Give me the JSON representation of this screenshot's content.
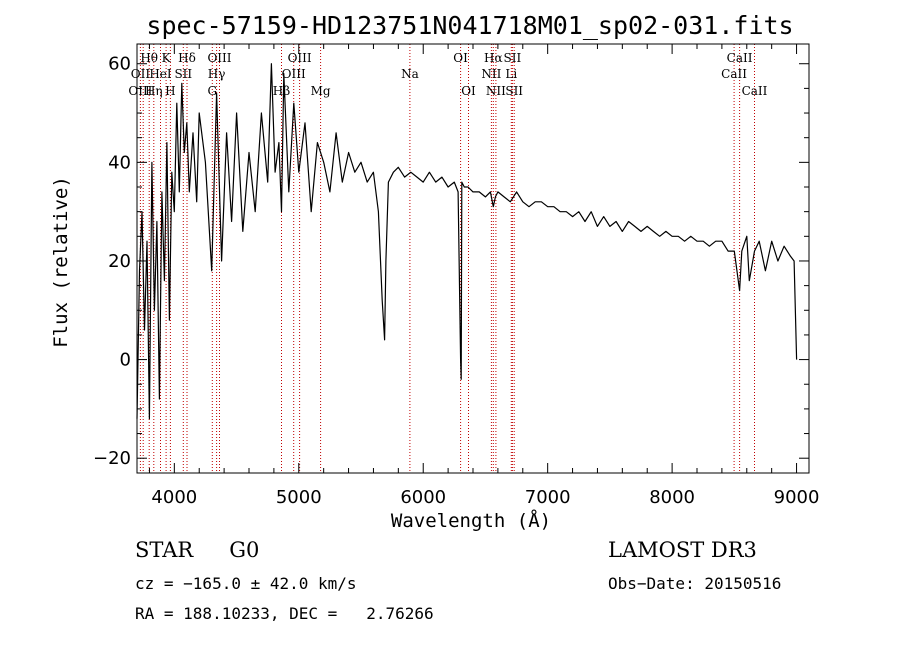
{
  "chart_data": {
    "type": "line",
    "title": "spec-57159-HD123751N041718M01_sp02-031.fits",
    "xlabel": "Wavelength (Å)",
    "ylabel": "Flux (relative)",
    "xlim": [
      3700,
      9100
    ],
    "ylim": [
      -23,
      64
    ],
    "xticks": [
      4000,
      5000,
      6000,
      7000,
      8000,
      9000
    ],
    "yticks": [
      -20,
      0,
      20,
      40,
      60
    ],
    "grid": false,
    "series": [
      {
        "name": "flux",
        "x": [
          3700,
          3720,
          3740,
          3760,
          3780,
          3800,
          3820,
          3840,
          3860,
          3880,
          3900,
          3920,
          3940,
          3960,
          3980,
          4000,
          4020,
          4040,
          4060,
          4080,
          4100,
          4120,
          4150,
          4180,
          4200,
          4250,
          4300,
          4340,
          4380,
          4420,
          4460,
          4500,
          4550,
          4600,
          4650,
          4700,
          4750,
          4780,
          4810,
          4840,
          4861,
          4880,
          4920,
          4960,
          5000,
          5050,
          5100,
          5150,
          5200,
          5250,
          5300,
          5350,
          5400,
          5450,
          5500,
          5550,
          5600,
          5640,
          5670,
          5690,
          5700,
          5720,
          5760,
          5800,
          5850,
          5900,
          5950,
          6000,
          6050,
          6100,
          6150,
          6200,
          6250,
          6280,
          6300,
          6305,
          6310,
          6330,
          6360,
          6400,
          6450,
          6500,
          6540,
          6563,
          6580,
          6600,
          6650,
          6700,
          6750,
          6800,
          6850,
          6900,
          6950,
          7000,
          7050,
          7100,
          7150,
          7200,
          7250,
          7300,
          7350,
          7400,
          7450,
          7500,
          7550,
          7600,
          7650,
          7700,
          7750,
          7800,
          7850,
          7900,
          7950,
          8000,
          8050,
          8100,
          8150,
          8200,
          8250,
          8300,
          8350,
          8400,
          8450,
          8500,
          8542,
          8560,
          8600,
          8620,
          8662,
          8700,
          8750,
          8800,
          8850,
          8900,
          8950,
          8980,
          9000
        ],
        "y": [
          -12,
          18,
          30,
          6,
          24,
          -12,
          40,
          10,
          28,
          -8,
          34,
          16,
          44,
          8,
          38,
          30,
          52,
          34,
          56,
          42,
          48,
          34,
          46,
          32,
          50,
          40,
          18,
          54,
          20,
          46,
          28,
          50,
          26,
          42,
          30,
          50,
          36,
          60,
          38,
          44,
          30,
          58,
          34,
          52,
          38,
          48,
          30,
          44,
          40,
          34,
          46,
          36,
          42,
          38,
          40,
          36,
          38,
          30,
          12,
          4,
          20,
          36,
          38,
          39,
          37,
          38,
          37,
          36,
          38,
          36,
          37,
          35,
          36,
          34,
          0,
          -4,
          36,
          35,
          35,
          34,
          34,
          33,
          34,
          31,
          33,
          34,
          33,
          32,
          34,
          32,
          31,
          32,
          32,
          31,
          31,
          30,
          30,
          29,
          30,
          28,
          30,
          27,
          29,
          27,
          28,
          26,
          28,
          27,
          26,
          27,
          26,
          25,
          26,
          25,
          25,
          24,
          25,
          24,
          24,
          23,
          24,
          24,
          22,
          22,
          14,
          22,
          25,
          16,
          22,
          24,
          18,
          24,
          20,
          23,
          21,
          20,
          0
        ]
      }
    ],
    "line_labels": [
      {
        "label": "Hθ",
        "wavelength": 3798,
        "row": 1
      },
      {
        "label": "OII",
        "wavelength": 3727,
        "row": 2
      },
      {
        "label": "OIII",
        "wavelength": 3727,
        "row": 3
      },
      {
        "label": "K",
        "wavelength": 3934,
        "row": 1
      },
      {
        "label": "HeI",
        "wavelength": 3889,
        "row": 2
      },
      {
        "label": "Hη",
        "wavelength": 3835,
        "row": 3
      },
      {
        "label": "Hδ",
        "wavelength": 4102,
        "row": 1
      },
      {
        "label": "SII",
        "wavelength": 4072,
        "row": 2
      },
      {
        "label": "H",
        "wavelength": 3968,
        "row": 3
      },
      {
        "label": "OIII",
        "wavelength": 4363,
        "row": 1
      },
      {
        "label": "Hγ",
        "wavelength": 4340,
        "row": 2
      },
      {
        "label": "G",
        "wavelength": 4305,
        "row": 3
      },
      {
        "label": "OIII",
        "wavelength": 5007,
        "row": 1
      },
      {
        "label": "OIII",
        "wavelength": 4959,
        "row": 2
      },
      {
        "label": "Hβ",
        "wavelength": 4861,
        "row": 3
      },
      {
        "label": "Mg",
        "wavelength": 5175,
        "row": 3
      },
      {
        "label": "Na",
        "wavelength": 5893,
        "row": 2
      },
      {
        "label": "OI",
        "wavelength": 6300,
        "row": 1
      },
      {
        "label": "OI",
        "wavelength": 6364,
        "row": 3
      },
      {
        "label": "Hα",
        "wavelength": 6563,
        "row": 1
      },
      {
        "label": "NII",
        "wavelength": 6548,
        "row": 2
      },
      {
        "label": "NII",
        "wavelength": 6584,
        "row": 3
      },
      {
        "label": "SII",
        "wavelength": 6717,
        "row": 1
      },
      {
        "label": "Li",
        "wavelength": 6708,
        "row": 2
      },
      {
        "label": "SII",
        "wavelength": 6731,
        "row": 3
      },
      {
        "label": "CaII",
        "wavelength": 8542,
        "row": 1
      },
      {
        "label": "CaII",
        "wavelength": 8498,
        "row": 2
      },
      {
        "label": "CaII",
        "wavelength": 8662,
        "row": 3
      }
    ],
    "line_marker_wavelengths": [
      3727,
      3750,
      3798,
      3835,
      3889,
      3934,
      3968,
      4072,
      4102,
      4305,
      4340,
      4363,
      4861,
      4959,
      5007,
      5175,
      5893,
      6300,
      6364,
      6548,
      6563,
      6584,
      6708,
      6717,
      6731,
      8498,
      8542,
      8662
    ]
  },
  "info": {
    "class": "STAR",
    "subclass": "G0",
    "survey": "LAMOST DR3",
    "cz": "cz = −165.0 ± 42.0 km/s",
    "obs_date": "Obs−Date: 20150516",
    "radec": "RA = 188.10233, DEC =   2.76266"
  },
  "colors": {
    "spectrum": "#000000",
    "marker": "#c00000",
    "background": "#ffffff"
  }
}
